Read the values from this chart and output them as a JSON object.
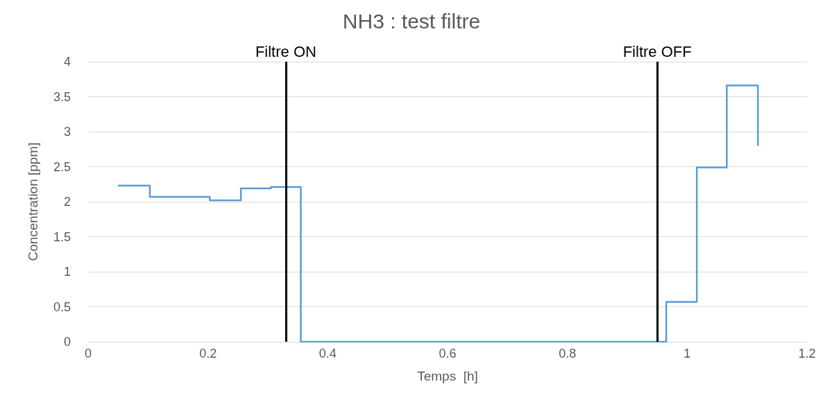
{
  "chart_data": {
    "type": "step",
    "title": "NH3 : test filtre",
    "xlabel": "Temps  [h]",
    "ylabel": "Concentration [ppm]",
    "x": [
      0.05,
      0.103,
      0.203,
      0.255,
      0.305,
      0.355,
      0.965,
      1.016,
      1.066,
      1.118
    ],
    "series": [
      {
        "color": "#5b9bd5",
        "values": [
          2.23,
          2.07,
          2.02,
          2.19,
          2.21,
          0,
          0.57,
          2.49,
          3.66,
          2.8
        ]
      }
    ],
    "xlim": [
      0,
      1.2
    ],
    "xticks": [
      0,
      0.2,
      0.4,
      0.6,
      0.8,
      1,
      1.2
    ],
    "ylim": [
      0,
      4
    ],
    "yticks": [
      0,
      0.5,
      1,
      1.5,
      2,
      2.5,
      3,
      3.5,
      4
    ],
    "grid": "y",
    "marker": "none",
    "ref_lines": [
      {
        "axis": "x",
        "value": 0.328,
        "label": "Filtre ON",
        "color": "#000000"
      },
      {
        "axis": "x",
        "value": 0.949,
        "label": "Filtre OFF",
        "color": "#000000"
      }
    ]
  }
}
